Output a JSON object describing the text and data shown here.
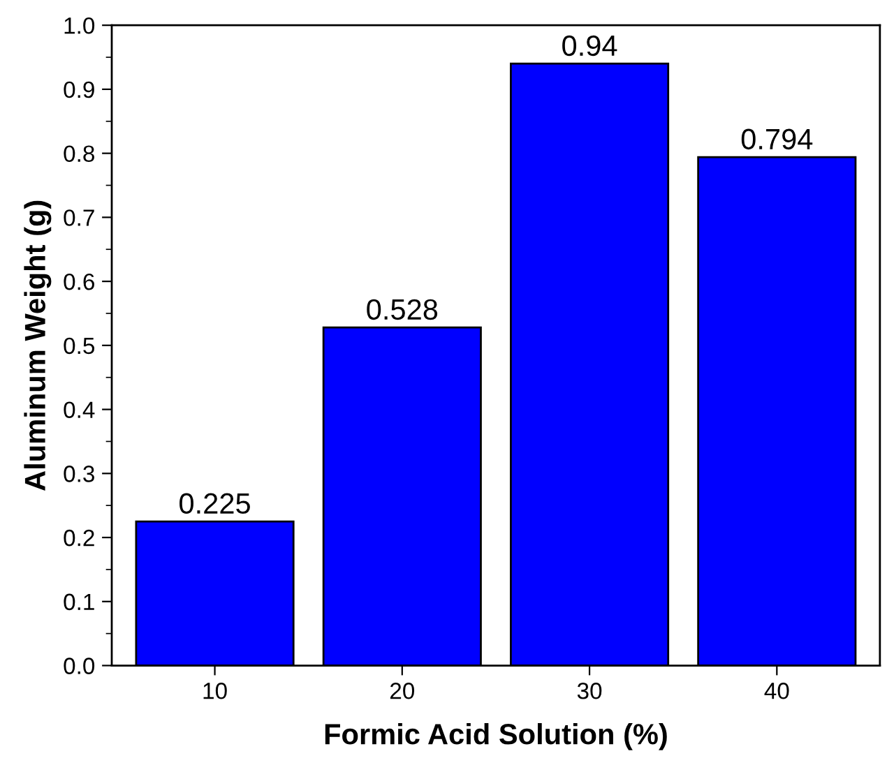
{
  "chart_data": {
    "type": "bar",
    "xlabel": "Formic Acid Solution (%)",
    "ylabel": "Aluminum Weight (g)",
    "categories": [
      "10",
      "20",
      "30",
      "40"
    ],
    "values": [
      0.225,
      0.528,
      0.94,
      0.794
    ],
    "color": "#0000ff",
    "ylim": [
      0,
      1.0
    ],
    "yticks": [
      {
        "value": 0,
        "label": "0.0"
      },
      0.1,
      0.2,
      0.3,
      0.4,
      0.5,
      0.6,
      0.7,
      0.8,
      0.9,
      {
        "value": 1.0,
        "label": "1.0"
      }
    ],
    "data_labels": true,
    "grid": false,
    "legend": false
  }
}
